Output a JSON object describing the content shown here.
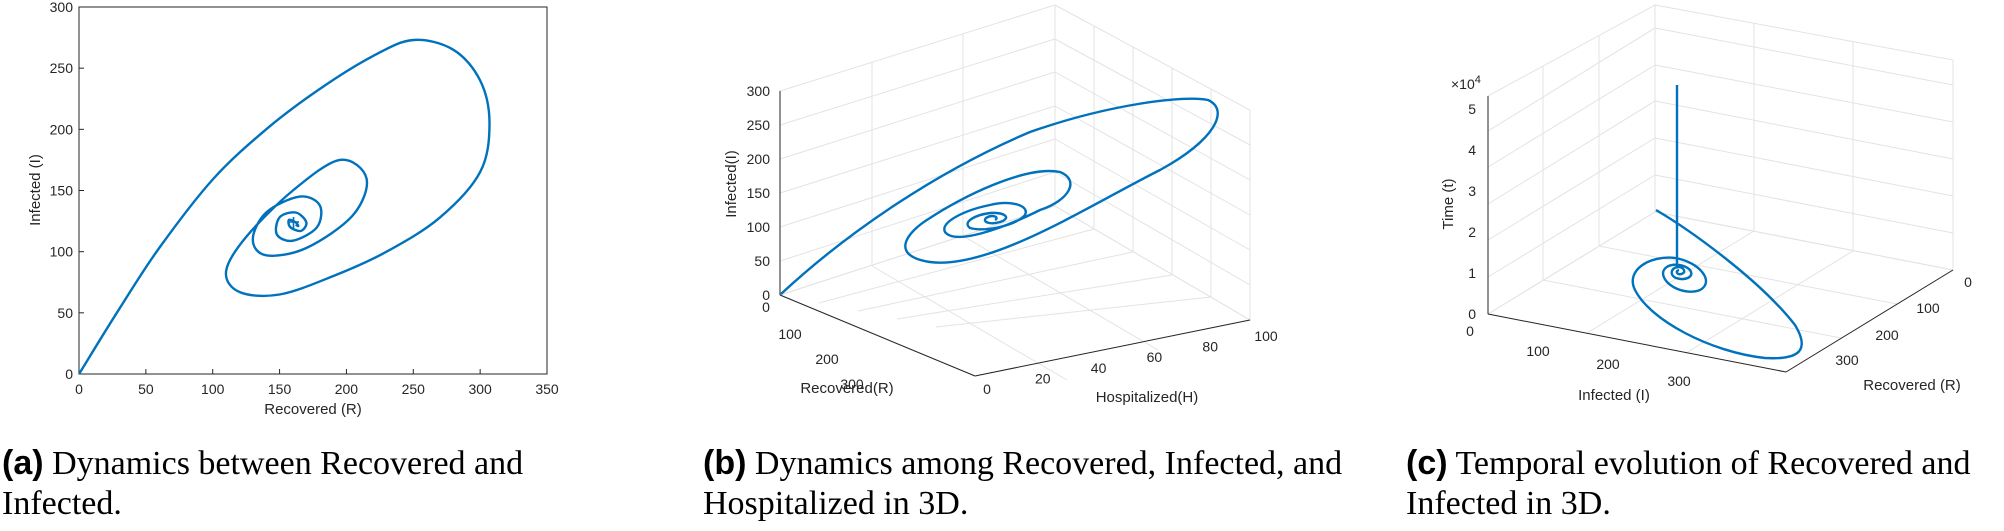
{
  "chart_data": [
    {
      "type": "line",
      "panel": "a",
      "xlabel": "Recovered (R)",
      "ylabel": "Infected (I)",
      "xlim": [
        0,
        350
      ],
      "ylim": [
        0,
        300
      ],
      "xticks": [
        "0",
        "50",
        "100",
        "150",
        "200",
        "250",
        "300",
        "350"
      ],
      "yticks": [
        "0",
        "50",
        "100",
        "150",
        "200",
        "250",
        "300"
      ],
      "series": [
        {
          "name": "trajectory",
          "color": "#0072BD",
          "start": [
            0,
            0
          ],
          "equilibrium": [
            162,
            122
          ],
          "x": [
            0,
            30,
            60,
            100,
            140,
            180,
            220,
            250,
            280,
            300,
            307,
            300,
            270,
            230,
            190,
            150,
            120,
            110,
            125,
            160,
            195,
            215,
            205,
            170,
            140,
            130,
            140,
            165,
            180,
            178,
            160,
            148,
            150,
            162,
            170,
            166,
            158,
            157,
            162,
            164,
            162
          ],
          "y": [
            0,
            53,
            103,
            159,
            200,
            233,
            260,
            273,
            265,
            240,
            205,
            165,
            128,
            100,
            80,
            65,
            67,
            84,
            112,
            150,
            175,
            160,
            130,
            103,
            97,
            110,
            132,
            145,
            138,
            120,
            109,
            114,
            128,
            132,
            124,
            117,
            120,
            126,
            124,
            121,
            122
          ]
        }
      ]
    },
    {
      "type": "line",
      "panel": "b",
      "projection": "3d",
      "xlabel": "Recovered(R)",
      "ylabel": "Hospitalized(H)",
      "zlabel": "Infected(I)",
      "xlim": [
        0,
        300
      ],
      "ylim": [
        0,
        100
      ],
      "zlim": [
        0,
        300
      ],
      "xticks": [
        "0",
        "100",
        "200",
        "300"
      ],
      "yticks": [
        "0",
        "20",
        "40",
        "60",
        "80",
        "100"
      ],
      "zticks": [
        "0",
        "50",
        "100",
        "150",
        "200",
        "250",
        "300"
      ],
      "series": [
        {
          "name": "trajectory",
          "color": "#0072BD",
          "note": "3D spiral from origin converging to an interior equilibrium"
        }
      ]
    },
    {
      "type": "line",
      "panel": "c",
      "projection": "3d",
      "xlabel": "Infected (I)",
      "ylabel": "Recovered (R)",
      "zlabel": "Time (t)",
      "zexponent": "×10",
      "zexponent_power": "4",
      "xlim": [
        0,
        300
      ],
      "ylim": [
        0,
        300
      ],
      "zlim": [
        0,
        5
      ],
      "xticks": [
        "0",
        "100",
        "200",
        "300"
      ],
      "yticks": [
        "0",
        "100",
        "200",
        "300"
      ],
      "zticks": [
        "0",
        "1",
        "2",
        "3",
        "4",
        "5"
      ],
      "series": [
        {
          "name": "trajectory",
          "color": "#0072BD",
          "note": "spiral converging to equilibrium then a vertical line rising in time"
        }
      ]
    }
  ],
  "captions": [
    {
      "tag": "(a)",
      "text": "Dynamics between Recovered and Infected."
    },
    {
      "tag": "(b)",
      "text": "Dynamics among Recovered, Infected, and Hospitalized in 3D."
    },
    {
      "tag": "(c)",
      "text": "Temporal evolution of Recovered and Infected in 3D."
    }
  ],
  "colors": {
    "line": "#0072BD",
    "grid": "#e3e3e3",
    "axis": "#262626"
  }
}
